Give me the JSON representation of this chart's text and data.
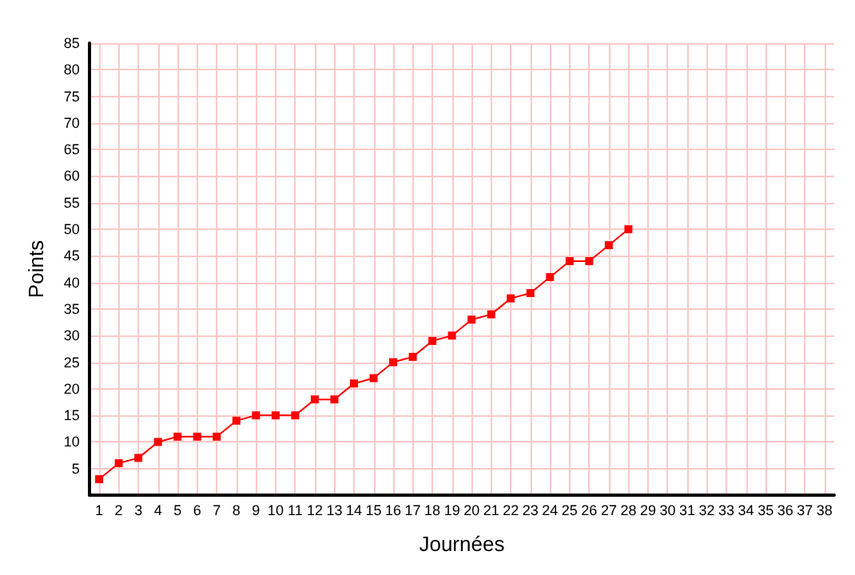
{
  "chart_data": {
    "type": "line",
    "xlabel": "Journées",
    "ylabel": "Points",
    "x": [
      1,
      2,
      3,
      4,
      5,
      6,
      7,
      8,
      9,
      10,
      11,
      12,
      13,
      14,
      15,
      16,
      17,
      18,
      19,
      20,
      21,
      22,
      23,
      24,
      25,
      26,
      27,
      28
    ],
    "values": [
      3,
      6,
      7,
      10,
      11,
      11,
      11,
      14,
      15,
      15,
      15,
      18,
      18,
      21,
      22,
      25,
      26,
      29,
      30,
      33,
      34,
      37,
      38,
      41,
      44,
      44,
      47,
      50
    ],
    "color": "#ff0000",
    "marker": "square",
    "line_style": "solid",
    "grid": true,
    "xlim": [
      0.5,
      38.5
    ],
    "xticks": [
      1,
      2,
      3,
      4,
      5,
      6,
      7,
      8,
      9,
      10,
      11,
      12,
      13,
      14,
      15,
      16,
      17,
      18,
      19,
      20,
      21,
      22,
      23,
      24,
      25,
      26,
      27,
      28,
      29,
      30,
      31,
      32,
      33,
      34,
      35,
      36,
      37,
      38
    ],
    "ylim": [
      0,
      85
    ],
    "yticks": [
      5,
      10,
      15,
      20,
      25,
      30,
      35,
      40,
      45,
      50,
      55,
      60,
      65,
      70,
      75,
      80,
      85
    ]
  }
}
